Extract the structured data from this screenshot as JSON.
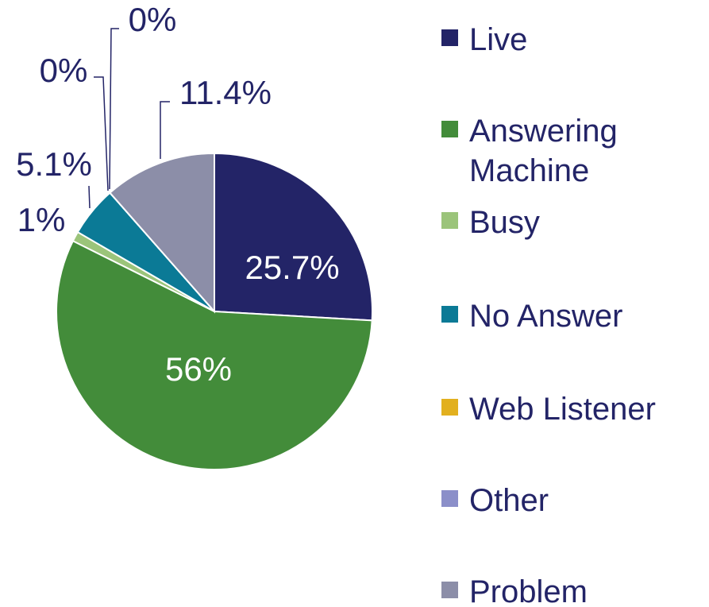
{
  "chart_data": {
    "type": "pie",
    "categories": [
      "Live",
      "Answering Machine",
      "Busy",
      "No Answer",
      "Web Listener",
      "Other",
      "Problem"
    ],
    "values": [
      25.7,
      56,
      1,
      5.1,
      0,
      0,
      11.4
    ],
    "value_labels": [
      "25.7%",
      "56%",
      "1%",
      "5.1%",
      "0%",
      "0%",
      "11.4%"
    ],
    "colors": [
      "#232467",
      "#438c3a",
      "#9bc47a",
      "#0b7a96",
      "#e2b01f",
      "#8b8fc9",
      "#8c8ea8"
    ],
    "legend": "right"
  }
}
